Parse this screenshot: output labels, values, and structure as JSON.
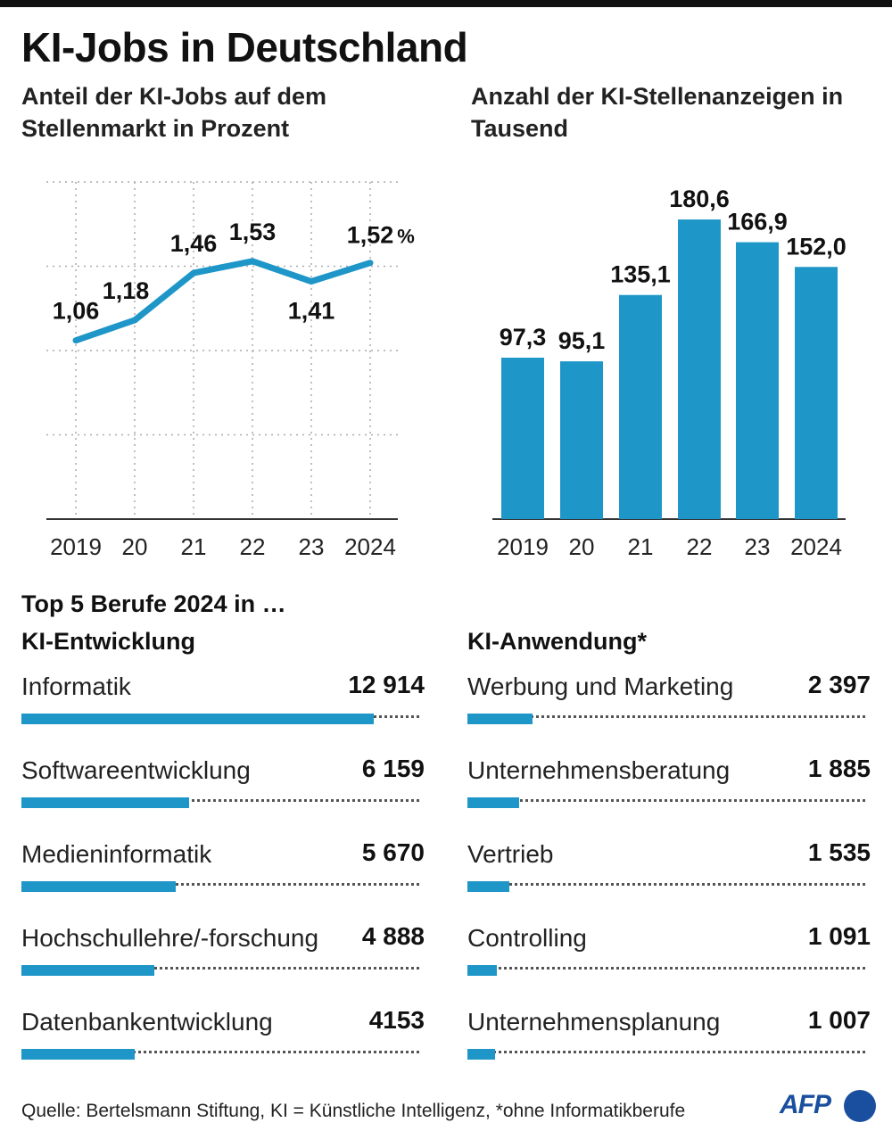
{
  "title": "KI-Jobs in Deutschland",
  "chart_data": [
    {
      "type": "line",
      "title": "Anteil der KI-Jobs auf dem Stellenmarkt in Prozent",
      "categories": [
        "2019",
        "20",
        "21",
        "22",
        "23",
        "2024"
      ],
      "values": [
        1.06,
        1.18,
        1.46,
        1.53,
        1.41,
        1.52
      ],
      "value_labels": [
        "1,06",
        "1,18",
        "1,46",
        "1,53",
        "1,41",
        "1,52"
      ],
      "unit_label": "%",
      "ylim": [
        0,
        2
      ],
      "grid": true,
      "color": "#1e96c8"
    },
    {
      "type": "bar",
      "title": "Anzahl der KI-Stellenanzeigen in Tausend",
      "categories": [
        "2019",
        "20",
        "21",
        "22",
        "23",
        "2024"
      ],
      "values": [
        97.3,
        95.1,
        135.1,
        180.6,
        166.9,
        152.0
      ],
      "value_labels": [
        "97,3",
        "95,1",
        "135,1",
        "180,6",
        "166,9",
        "152,0"
      ],
      "ylim": [
        0,
        200
      ],
      "color": "#1e96c8"
    },
    {
      "type": "bar",
      "orientation": "horizontal",
      "title": "KI-Entwicklung",
      "categories": [
        "Informatik",
        "Softwareentwicklung",
        "Medieninformatik",
        "Hochschullehre/-forschung",
        "Datenbankentwicklung"
      ],
      "values": [
        12914,
        6159,
        5670,
        4888,
        4153
      ],
      "value_labels": [
        "12 914",
        "6 159",
        "5 670",
        "4 888",
        "4153"
      ],
      "xlim": [
        0,
        14500
      ],
      "color": "#1e96c8"
    },
    {
      "type": "bar",
      "orientation": "horizontal",
      "title": "KI-Anwendung*",
      "categories": [
        "Werbung und Marketing",
        "Unternehmensberatung",
        "Vertrieb",
        "Controlling",
        "Unternehmensplanung"
      ],
      "values": [
        2397,
        1885,
        1535,
        1091,
        1007
      ],
      "value_labels": [
        "2 397",
        "1 885",
        "1 535",
        "1 091",
        "1 007"
      ],
      "xlim": [
        0,
        14500
      ],
      "color": "#1e96c8"
    }
  ],
  "top5_heading": "Top 5 Berufe 2024 in …",
  "source": "Quelle: Bertelsmann Stiftung, KI = Künstliche Intelligenz, *ohne Informatikberufe",
  "logo": "AFP"
}
